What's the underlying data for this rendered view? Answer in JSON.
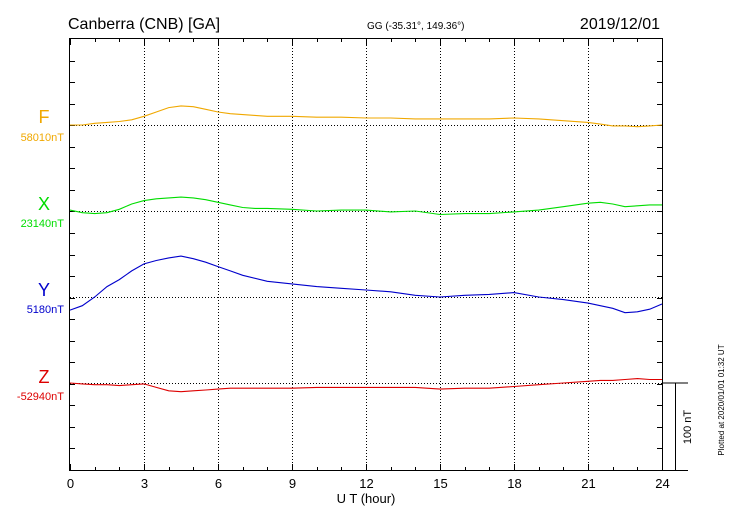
{
  "header": {
    "station": "Canberra (CNB)  [GA]",
    "coords": "GG (-35.31°, 149.36°)",
    "date": "2019/12/01"
  },
  "footer": {
    "plotted": "Plotted at 2020/01/01 01:32 UT"
  },
  "chart_data": {
    "type": "line",
    "xlabel": "U T (hour)",
    "xlim": [
      0,
      24
    ],
    "xticks": [
      "0",
      "3",
      "6",
      "9",
      "12",
      "15",
      "18",
      "21",
      "24"
    ],
    "grid": true,
    "scale_bar": {
      "label": "100 nT",
      "value_nT": 100
    },
    "series": [
      {
        "name": "F",
        "baseline_label": "58010nT",
        "baseline_nT": 58010,
        "color": "#f0a800",
        "x": [
          0,
          0.5,
          1,
          1.5,
          2,
          2.5,
          3,
          3.5,
          4,
          4.5,
          5,
          5.5,
          6,
          6.5,
          7,
          7.5,
          8,
          9,
          10,
          11,
          12,
          13,
          14,
          15,
          16,
          17,
          18,
          19,
          20,
          21,
          21.5,
          22,
          22.5,
          23,
          23.5,
          24
        ],
        "y": [
          58010,
          58010,
          58012,
          58013,
          58014,
          58016,
          58020,
          58025,
          58030,
          58032,
          58031,
          58028,
          58025,
          58023,
          58022,
          58021,
          58020,
          58020,
          58019,
          58019,
          58018,
          58018,
          58017,
          58017,
          58017,
          58017,
          58018,
          58017,
          58015,
          58013,
          58011,
          58009,
          58009,
          58008,
          58009,
          58010
        ]
      },
      {
        "name": "X",
        "baseline_label": "23140nT",
        "baseline_nT": 23140,
        "color": "#00dd00",
        "x": [
          0,
          0.5,
          1,
          1.5,
          2,
          2.5,
          3,
          3.5,
          4,
          4.5,
          5,
          5.5,
          6,
          6.5,
          7,
          7.5,
          8,
          9,
          10,
          11,
          12,
          13,
          14,
          15,
          16,
          17,
          18,
          19,
          20,
          21,
          21.5,
          22,
          22.5,
          23,
          23.5,
          24
        ],
        "y": [
          23141,
          23138,
          23137,
          23138,
          23142,
          23148,
          23152,
          23154,
          23155,
          23156,
          23155,
          23153,
          23150,
          23147,
          23144,
          23143,
          23143,
          23142,
          23140,
          23141,
          23141,
          23139,
          23140,
          23136,
          23137,
          23137,
          23139,
          23141,
          23145,
          23149,
          23150,
          23148,
          23145,
          23146,
          23147,
          23147
        ]
      },
      {
        "name": "Y",
        "baseline_label": "5180nT",
        "baseline_nT": 5180,
        "color": "#0000cc",
        "x": [
          0,
          0.5,
          1,
          1.5,
          2,
          2.5,
          3,
          3.5,
          4,
          4.5,
          5,
          5.5,
          6,
          6.5,
          7,
          8,
          9,
          10,
          11,
          12,
          13,
          14,
          15,
          16,
          17,
          18,
          19,
          20,
          21,
          21.5,
          22,
          22.5,
          23,
          23.5,
          24
        ],
        "y": [
          5165,
          5170,
          5180,
          5192,
          5200,
          5210,
          5218,
          5222,
          5225,
          5227,
          5224,
          5220,
          5215,
          5210,
          5205,
          5198,
          5195,
          5192,
          5190,
          5188,
          5186,
          5182,
          5180,
          5182,
          5183,
          5185,
          5180,
          5177,
          5173,
          5170,
          5167,
          5162,
          5163,
          5166,
          5172
        ]
      },
      {
        "name": "Z",
        "baseline_label": "-52940nT",
        "baseline_nT": -52940,
        "color": "#dd0000",
        "x": [
          0,
          0.5,
          1,
          1.5,
          2,
          2.5,
          3,
          3.5,
          4,
          4.5,
          5,
          5.5,
          6,
          6.5,
          7,
          8,
          9,
          10,
          11,
          12,
          13,
          14,
          15,
          16,
          17,
          18,
          19,
          20,
          21,
          21.5,
          22,
          22.5,
          23,
          23.5,
          24
        ],
        "y": [
          -52940,
          -52941,
          -52942,
          -52942,
          -52943,
          -52942,
          -52941,
          -52945,
          -52949,
          -52950,
          -52949,
          -52948,
          -52947,
          -52946,
          -52946,
          -52946,
          -52946,
          -52945,
          -52945,
          -52945,
          -52945,
          -52945,
          -52947,
          -52946,
          -52946,
          -52944,
          -52942,
          -52940,
          -52938,
          -52937,
          -52937,
          -52936,
          -52935,
          -52936,
          -52936
        ]
      }
    ]
  }
}
